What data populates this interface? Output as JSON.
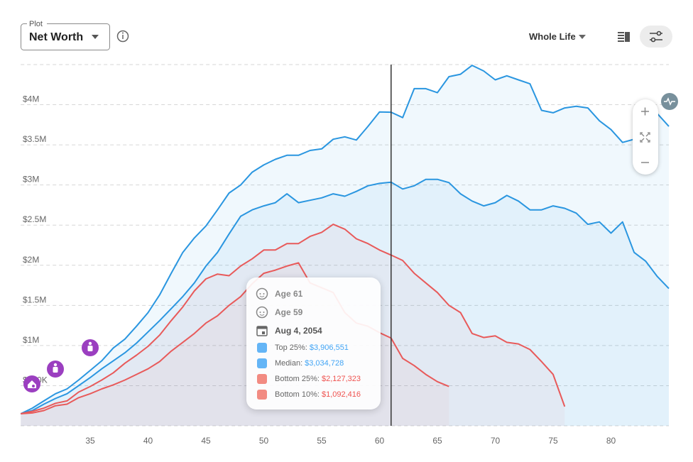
{
  "controls": {
    "plot_label": "Plot",
    "plot_value": "Net Worth",
    "range": "Whole Life"
  },
  "chart_data": {
    "type": "line",
    "x": [
      29,
      30,
      31,
      32,
      33,
      34,
      35,
      36,
      37,
      38,
      39,
      40,
      41,
      42,
      43,
      44,
      45,
      46,
      47,
      48,
      49,
      50,
      51,
      52,
      53,
      54,
      55,
      56,
      57,
      58,
      59,
      60,
      61,
      62,
      63,
      64,
      65,
      66,
      67,
      68,
      69,
      70,
      71,
      72,
      73,
      74,
      75,
      76,
      77,
      78,
      79,
      80,
      81,
      82,
      83,
      84,
      85
    ],
    "xlim": [
      29,
      85
    ],
    "xticks": [
      35,
      40,
      45,
      50,
      55,
      60,
      65,
      70,
      75,
      80
    ],
    "ylim": [
      0,
      4500000
    ],
    "yticks": [
      {
        "value": 500000,
        "label": "$500K"
      },
      {
        "value": 1000000,
        "label": "$1M"
      },
      {
        "value": 1500000,
        "label": "$1.5M"
      },
      {
        "value": 2000000,
        "label": "$2M"
      },
      {
        "value": 2500000,
        "label": "$2.5M"
      },
      {
        "value": 3000000,
        "label": "$3M"
      },
      {
        "value": 3500000,
        "label": "$3.5M"
      },
      {
        "value": 4000000,
        "label": "$4M"
      }
    ],
    "grid": true,
    "cursor": 61,
    "series": [
      {
        "color": "#2a96e0",
        "fill": "rgba(42,150,224,0.07)",
        "values": [
          150000,
          220000,
          310000,
          400000,
          460000,
          570000,
          690000,
          810000,
          970000,
          1080000,
          1240000,
          1410000,
          1630000,
          1900000,
          2160000,
          2340000,
          2490000,
          2690000,
          2900000,
          3000000,
          3160000,
          3250000,
          3320000,
          3370000,
          3370000,
          3430000,
          3450000,
          3570000,
          3600000,
          3560000,
          3730000,
          3910000,
          3906551,
          3840000,
          4200000,
          4200000,
          4150000,
          4350000,
          4380000,
          4490000,
          4420000,
          4310000,
          4360000,
          4310000,
          4260000,
          3930000,
          3900000,
          3960000,
          3980000,
          3960000,
          3800000,
          3690000,
          3530000,
          3570000,
          4020000,
          3890000,
          3730000
        ]
      },
      {
        "color": "#2a96e0",
        "fill": "rgba(42,150,224,0.07)",
        "values": [
          150000,
          190000,
          270000,
          340000,
          400000,
          500000,
          600000,
          710000,
          810000,
          910000,
          1030000,
          1170000,
          1310000,
          1460000,
          1610000,
          1780000,
          1990000,
          2160000,
          2390000,
          2610000,
          2690000,
          2740000,
          2780000,
          2890000,
          2780000,
          2810000,
          2840000,
          2890000,
          2860000,
          2920000,
          2990000,
          3020000,
          3034728,
          2950000,
          2990000,
          3070000,
          3070000,
          3030000,
          2890000,
          2800000,
          2740000,
          2780000,
          2870000,
          2800000,
          2690000,
          2690000,
          2740000,
          2710000,
          2650000,
          2510000,
          2540000,
          2400000,
          2540000,
          2160000,
          2050000,
          1860000,
          1710000
        ]
      },
      {
        "color": "#e85a5a",
        "fill": "rgba(232,90,90,0.05)",
        "values": [
          150000,
          180000,
          220000,
          280000,
          310000,
          420000,
          490000,
          570000,
          660000,
          780000,
          880000,
          990000,
          1130000,
          1310000,
          1480000,
          1680000,
          1830000,
          1890000,
          1870000,
          1990000,
          2080000,
          2190000,
          2190000,
          2270000,
          2270000,
          2360000,
          2410000,
          2510000,
          2450000,
          2330000,
          2270000,
          2190000,
          2127323,
          2060000,
          1900000,
          1780000,
          1660000,
          1500000,
          1410000,
          1150000,
          1100000,
          1120000,
          1040000,
          1020000,
          950000,
          800000,
          640000,
          240000,
          null,
          null,
          null,
          null,
          null,
          null,
          null,
          null,
          null
        ]
      },
      {
        "color": "#e85a5a",
        "fill": "rgba(232,90,90,0.05)",
        "values": [
          150000,
          160000,
          190000,
          250000,
          270000,
          350000,
          400000,
          460000,
          510000,
          570000,
          640000,
          710000,
          800000,
          930000,
          1040000,
          1150000,
          1280000,
          1370000,
          1500000,
          1610000,
          1770000,
          1900000,
          1940000,
          1990000,
          2030000,
          1780000,
          1720000,
          1660000,
          1410000,
          1280000,
          1240000,
          1160000,
          1092416,
          840000,
          750000,
          640000,
          550000,
          490000,
          null,
          null,
          null,
          null,
          null,
          null,
          null,
          null,
          null,
          null,
          null,
          null,
          null,
          null,
          null,
          null,
          null,
          null,
          null
        ]
      }
    ]
  },
  "tooltip": {
    "age_primary": "Age 61",
    "age_secondary": "Age 59",
    "date": "Aug 4, 2054",
    "rows": [
      {
        "label": "Top 25%:",
        "value": "$3,906,551",
        "swatch": "#64b5f6",
        "text_color": "#42a5f5"
      },
      {
        "label": "Median:",
        "value": "$3,034,728",
        "swatch": "#64b5f6",
        "text_color": "#42a5f5"
      },
      {
        "label": "Bottom 25%:",
        "value": "$2,127,323",
        "swatch": "#f28b82",
        "text_color": "#ef5350"
      },
      {
        "label": "Bottom 10%:",
        "value": "$1,092,416",
        "swatch": "#f28b82",
        "text_color": "#ef5350"
      }
    ]
  }
}
